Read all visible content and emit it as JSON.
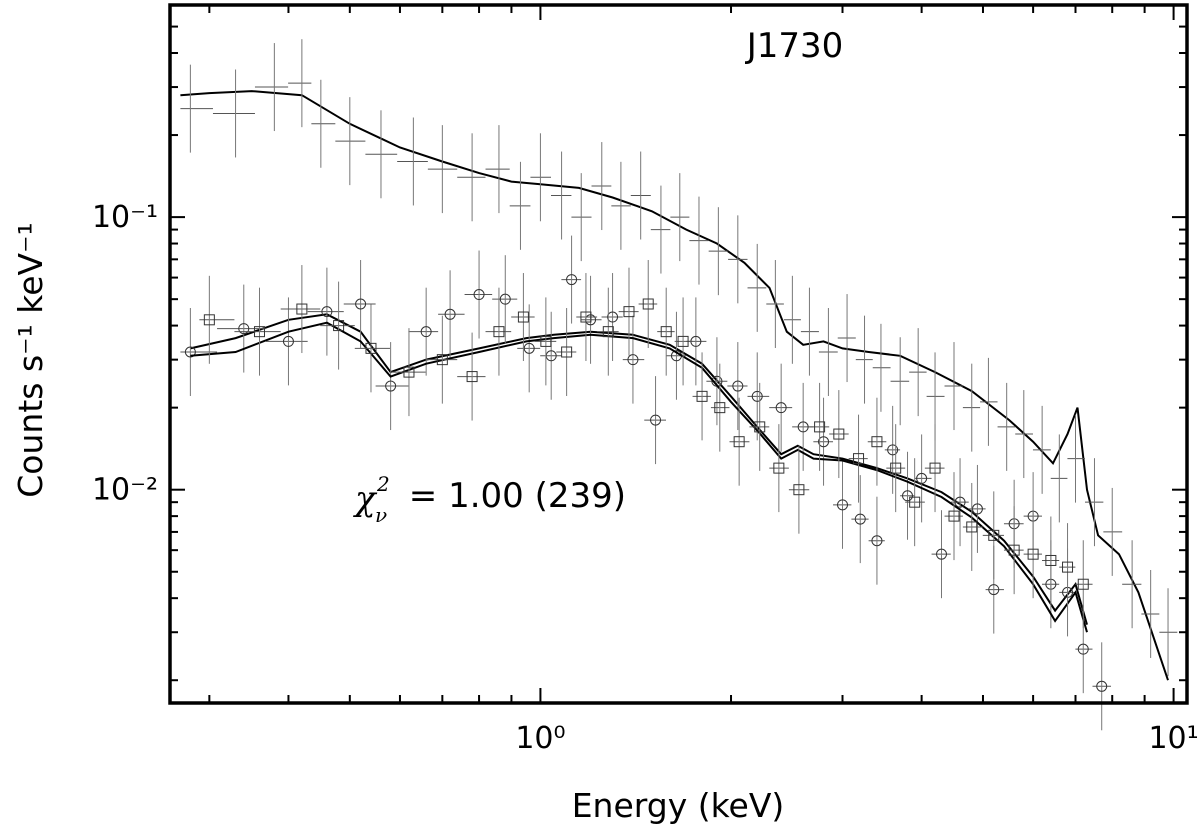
{
  "chart_data": {
    "type": "scatter",
    "title": "J1730",
    "xlabel": "Energy (keV)",
    "ylabel": "Counts s⁻¹ keV⁻¹",
    "x_scale": "log",
    "y_scale": "log",
    "xlim": [
      0.26,
      10.5
    ],
    "ylim": [
      0.00165,
      0.6
    ],
    "x_major_ticks": [
      {
        "value": 1,
        "label": "10⁰"
      },
      {
        "value": 10,
        "label": "10¹"
      }
    ],
    "y_major_ticks": [
      {
        "value": 0.01,
        "label": "10⁻²"
      },
      {
        "value": 0.1,
        "label": "10⁻¹"
      }
    ],
    "annotation": {
      "symbol": "χ",
      "sub": "ν",
      "sup": "2",
      "text": " = 1.00 (239)"
    },
    "series": [
      {
        "name": "plus",
        "marker": "plus",
        "points": [
          [
            0.28,
            0.25
          ],
          [
            0.33,
            0.24
          ],
          [
            0.38,
            0.3
          ],
          [
            0.42,
            0.31
          ],
          [
            0.45,
            0.22
          ],
          [
            0.5,
            0.19
          ],
          [
            0.56,
            0.17
          ],
          [
            0.63,
            0.16
          ],
          [
            0.7,
            0.15
          ],
          [
            0.78,
            0.14
          ],
          [
            0.86,
            0.15
          ],
          [
            0.93,
            0.11
          ],
          [
            1.0,
            0.14
          ],
          [
            1.08,
            0.12
          ],
          [
            1.16,
            0.1
          ],
          [
            1.25,
            0.13
          ],
          [
            1.34,
            0.11
          ],
          [
            1.44,
            0.12
          ],
          [
            1.55,
            0.09
          ],
          [
            1.66,
            0.1
          ],
          [
            1.78,
            0.082
          ],
          [
            1.91,
            0.075
          ],
          [
            2.05,
            0.07
          ],
          [
            2.2,
            0.055
          ],
          [
            2.35,
            0.048
          ],
          [
            2.5,
            0.042
          ],
          [
            2.66,
            0.038
          ],
          [
            2.85,
            0.032
          ],
          [
            3.05,
            0.036
          ],
          [
            3.25,
            0.03
          ],
          [
            3.45,
            0.028
          ],
          [
            3.7,
            0.025
          ],
          [
            3.95,
            0.027
          ],
          [
            4.2,
            0.022
          ],
          [
            4.5,
            0.024
          ],
          [
            4.8,
            0.02
          ],
          [
            5.1,
            0.021
          ],
          [
            5.45,
            0.017
          ],
          [
            5.8,
            0.016
          ],
          [
            6.2,
            0.014
          ],
          [
            6.6,
            0.011
          ],
          [
            7.0,
            0.013
          ],
          [
            7.5,
            0.009
          ],
          [
            8.0,
            0.007
          ],
          [
            8.6,
            0.0045
          ],
          [
            9.2,
            0.0035
          ],
          [
            9.8,
            0.003
          ]
        ],
        "model": [
          [
            0.27,
            0.28
          ],
          [
            0.3,
            0.285
          ],
          [
            0.35,
            0.29
          ],
          [
            0.42,
            0.28
          ],
          [
            0.5,
            0.22
          ],
          [
            0.6,
            0.18
          ],
          [
            0.7,
            0.16
          ],
          [
            0.8,
            0.145
          ],
          [
            0.9,
            0.135
          ],
          [
            1.0,
            0.132
          ],
          [
            1.15,
            0.128
          ],
          [
            1.3,
            0.118
          ],
          [
            1.5,
            0.105
          ],
          [
            1.7,
            0.09
          ],
          [
            1.9,
            0.08
          ],
          [
            2.1,
            0.068
          ],
          [
            2.3,
            0.055
          ],
          [
            2.45,
            0.038
          ],
          [
            2.6,
            0.034
          ],
          [
            2.8,
            0.035
          ],
          [
            3.0,
            0.033
          ],
          [
            3.3,
            0.032
          ],
          [
            3.7,
            0.031
          ],
          [
            4.2,
            0.027
          ],
          [
            4.8,
            0.023
          ],
          [
            5.5,
            0.018
          ],
          [
            6.0,
            0.015
          ],
          [
            6.45,
            0.0125
          ],
          [
            6.8,
            0.016
          ],
          [
            7.05,
            0.02
          ],
          [
            7.3,
            0.01
          ],
          [
            7.6,
            0.0068
          ],
          [
            8.2,
            0.0058
          ],
          [
            8.8,
            0.0042
          ],
          [
            9.8,
            0.002
          ]
        ]
      },
      {
        "name": "circle",
        "marker": "circle",
        "points": [
          [
            0.28,
            0.032
          ],
          [
            0.34,
            0.039
          ],
          [
            0.4,
            0.035
          ],
          [
            0.46,
            0.045
          ],
          [
            0.52,
            0.048
          ],
          [
            0.58,
            0.024
          ],
          [
            0.66,
            0.038
          ],
          [
            0.72,
            0.044
          ],
          [
            0.8,
            0.052
          ],
          [
            0.88,
            0.05
          ],
          [
            0.96,
            0.033
          ],
          [
            1.04,
            0.031
          ],
          [
            1.12,
            0.059
          ],
          [
            1.2,
            0.042
          ],
          [
            1.3,
            0.043
          ],
          [
            1.4,
            0.03
          ],
          [
            1.52,
            0.018
          ],
          [
            1.64,
            0.031
          ],
          [
            1.76,
            0.035
          ],
          [
            1.9,
            0.025
          ],
          [
            2.05,
            0.024
          ],
          [
            2.2,
            0.022
          ],
          [
            2.4,
            0.02
          ],
          [
            2.6,
            0.017
          ],
          [
            2.8,
            0.015
          ],
          [
            3.0,
            0.0088
          ],
          [
            3.2,
            0.0078
          ],
          [
            3.4,
            0.0065
          ],
          [
            3.6,
            0.014
          ],
          [
            3.8,
            0.0095
          ],
          [
            4.0,
            0.011
          ],
          [
            4.3,
            0.0058
          ],
          [
            4.6,
            0.009
          ],
          [
            4.9,
            0.0085
          ],
          [
            5.2,
            0.0043
          ],
          [
            5.6,
            0.0075
          ],
          [
            6.0,
            0.008
          ],
          [
            6.4,
            0.0045
          ],
          [
            6.8,
            0.0042
          ],
          [
            7.2,
            0.0026
          ],
          [
            7.7,
            0.0019
          ]
        ],
        "model": [
          [
            0.28,
            0.033
          ],
          [
            0.33,
            0.036
          ],
          [
            0.4,
            0.042
          ],
          [
            0.46,
            0.044
          ],
          [
            0.52,
            0.038
          ],
          [
            0.58,
            0.027
          ],
          [
            0.66,
            0.03
          ],
          [
            0.8,
            0.033
          ],
          [
            0.95,
            0.036
          ],
          [
            1.05,
            0.037
          ],
          [
            1.2,
            0.038
          ],
          [
            1.4,
            0.037
          ],
          [
            1.6,
            0.034
          ],
          [
            1.8,
            0.029
          ],
          [
            2.0,
            0.022
          ],
          [
            2.2,
            0.017
          ],
          [
            2.4,
            0.0135
          ],
          [
            2.55,
            0.0145
          ],
          [
            2.7,
            0.0135
          ],
          [
            3.0,
            0.013
          ],
          [
            3.4,
            0.012
          ],
          [
            3.8,
            0.011
          ],
          [
            4.3,
            0.0098
          ],
          [
            4.8,
            0.0083
          ],
          [
            5.4,
            0.0065
          ],
          [
            6.0,
            0.0048
          ],
          [
            6.5,
            0.0036
          ],
          [
            7.0,
            0.0045
          ],
          [
            7.3,
            0.0032
          ]
        ]
      },
      {
        "name": "square",
        "marker": "square",
        "points": [
          [
            0.3,
            0.042
          ],
          [
            0.36,
            0.038
          ],
          [
            0.42,
            0.046
          ],
          [
            0.48,
            0.04
          ],
          [
            0.54,
            0.033
          ],
          [
            0.62,
            0.027
          ],
          [
            0.7,
            0.03
          ],
          [
            0.78,
            0.026
          ],
          [
            0.86,
            0.038
          ],
          [
            0.94,
            0.043
          ],
          [
            1.02,
            0.035
          ],
          [
            1.1,
            0.032
          ],
          [
            1.18,
            0.043
          ],
          [
            1.28,
            0.038
          ],
          [
            1.38,
            0.045
          ],
          [
            1.48,
            0.048
          ],
          [
            1.58,
            0.038
          ],
          [
            1.68,
            0.035
          ],
          [
            1.8,
            0.022
          ],
          [
            1.92,
            0.02
          ],
          [
            2.06,
            0.015
          ],
          [
            2.22,
            0.017
          ],
          [
            2.38,
            0.012
          ],
          [
            2.56,
            0.01
          ],
          [
            2.76,
            0.017
          ],
          [
            2.96,
            0.016
          ],
          [
            3.18,
            0.013
          ],
          [
            3.4,
            0.015
          ],
          [
            3.64,
            0.012
          ],
          [
            3.9,
            0.009
          ],
          [
            4.2,
            0.012
          ],
          [
            4.5,
            0.008
          ],
          [
            4.8,
            0.0073
          ],
          [
            5.2,
            0.0068
          ],
          [
            5.6,
            0.006
          ],
          [
            6.0,
            0.0058
          ],
          [
            6.4,
            0.0055
          ],
          [
            6.8,
            0.0052
          ],
          [
            7.2,
            0.0045
          ]
        ],
        "model": [
          [
            0.28,
            0.031
          ],
          [
            0.33,
            0.032
          ],
          [
            0.4,
            0.038
          ],
          [
            0.46,
            0.041
          ],
          [
            0.52,
            0.035
          ],
          [
            0.58,
            0.026
          ],
          [
            0.66,
            0.029
          ],
          [
            0.8,
            0.032
          ],
          [
            0.95,
            0.035
          ],
          [
            1.05,
            0.036
          ],
          [
            1.2,
            0.037
          ],
          [
            1.4,
            0.036
          ],
          [
            1.6,
            0.033
          ],
          [
            1.8,
            0.028
          ],
          [
            2.0,
            0.021
          ],
          [
            2.2,
            0.0165
          ],
          [
            2.4,
            0.013
          ],
          [
            2.55,
            0.014
          ],
          [
            2.7,
            0.013
          ],
          [
            3.0,
            0.0128
          ],
          [
            3.4,
            0.0118
          ],
          [
            3.8,
            0.0107
          ],
          [
            4.3,
            0.0094
          ],
          [
            4.8,
            0.0079
          ],
          [
            5.4,
            0.0062
          ],
          [
            6.0,
            0.0045
          ],
          [
            6.5,
            0.0033
          ],
          [
            7.0,
            0.0042
          ],
          [
            7.3,
            0.003
          ]
        ]
      }
    ]
  }
}
